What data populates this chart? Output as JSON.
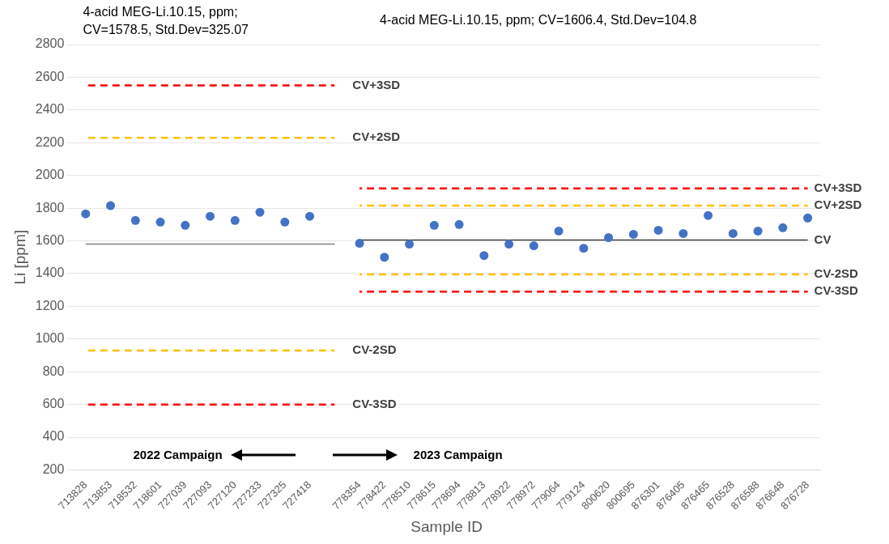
{
  "chart_data": {
    "type": "scatter",
    "categories": [
      "713828",
      "713853",
      "718532",
      "718601",
      "727039",
      "727093",
      "727120",
      "727233",
      "727325",
      "727418",
      null,
      "778354",
      "778422",
      "778510",
      "778615",
      "778694",
      "778813",
      "778922",
      "778972",
      "779064",
      "779124",
      "800620",
      "800695",
      "876301",
      "876405",
      "876465",
      "876528",
      "876588",
      "876648",
      "876728"
    ],
    "xlabel": "Sample ID",
    "ylabel": "Li [ppm]",
    "ylim": [
      200,
      2800
    ],
    "yticks": [
      200,
      400,
      600,
      800,
      1000,
      1200,
      1400,
      1600,
      1800,
      2000,
      2200,
      2400,
      2600,
      2800
    ],
    "grid": "y",
    "legend": false,
    "marker": "circle",
    "annotations": [
      "4-acid MEG-Li.10.15, ppm;\nCV=1578.5, Std.Dev=325.07",
      "4-acid MEG-Li.10.15, ppm; CV=1606.4, Std.Dev=104.8",
      "2022 Campaign",
      "2023 Campaign"
    ],
    "series": [
      {
        "color": "#4472c4",
        "values": [
          1765,
          1815,
          1725,
          1715,
          1695,
          1750,
          1725,
          1775,
          1715,
          1750,
          null,
          1585,
          1500,
          1580,
          1695,
          1700,
          1510,
          1580,
          1570,
          1660,
          1555,
          1620,
          1640,
          1665,
          1645,
          1755,
          1645,
          1660,
          1680,
          1740
        ]
      },
      {
        "type": "line",
        "name": "CV+3SD",
        "color": "#ff0000",
        "line_style": "dashed",
        "marker": "none",
        "values": [
          2550,
          2550,
          2550,
          2550,
          2550,
          2550,
          2550,
          2550,
          2550,
          2550,
          2550,
          null,
          null,
          null,
          null,
          null,
          null,
          null,
          null,
          null,
          null,
          null,
          null,
          null,
          null,
          null,
          null,
          null,
          null,
          null
        ]
      },
      {
        "type": "line",
        "name": "CV+2SD",
        "color": "#ffc000",
        "line_style": "dashed",
        "marker": "none",
        "values": [
          2230,
          2230,
          2230,
          2230,
          2230,
          2230,
          2230,
          2230,
          2230,
          2230,
          2230,
          null,
          null,
          null,
          null,
          null,
          null,
          null,
          null,
          null,
          null,
          null,
          null,
          null,
          null,
          null,
          null,
          null,
          null,
          null
        ]
      },
      {
        "type": "line",
        "color": "#808080",
        "line_style": "solid",
        "marker": "none",
        "values": [
          1580,
          1580,
          1580,
          1580,
          1580,
          1580,
          1580,
          1580,
          1580,
          1580,
          1580,
          null,
          null,
          null,
          null,
          null,
          null,
          null,
          null,
          null,
          null,
          null,
          null,
          null,
          null,
          null,
          null,
          null,
          null,
          null
        ]
      },
      {
        "type": "line",
        "name": "CV-2SD",
        "color": "#ffc000",
        "line_style": "dashed",
        "marker": "none",
        "values": [
          930,
          930,
          930,
          930,
          930,
          930,
          930,
          930,
          930,
          930,
          930,
          null,
          null,
          null,
          null,
          null,
          null,
          null,
          null,
          null,
          null,
          null,
          null,
          null,
          null,
          null,
          null,
          null,
          null,
          null
        ]
      },
      {
        "type": "line",
        "name": "CV-3SD",
        "color": "#ff0000",
        "line_style": "dashed",
        "marker": "none",
        "values": [
          600,
          600,
          600,
          600,
          600,
          600,
          600,
          600,
          600,
          600,
          600,
          null,
          null,
          null,
          null,
          null,
          null,
          null,
          null,
          null,
          null,
          null,
          null,
          null,
          null,
          null,
          null,
          null,
          null,
          null
        ]
      },
      {
        "type": "line",
        "name": "CV+3SD",
        "color": "#ff0000",
        "line_style": "dashed",
        "marker": "none",
        "values": [
          null,
          null,
          null,
          null,
          null,
          null,
          null,
          null,
          null,
          null,
          null,
          1920,
          1920,
          1920,
          1920,
          1920,
          1920,
          1920,
          1920,
          1920,
          1920,
          1920,
          1920,
          1920,
          1920,
          1920,
          1920,
          1920,
          1920,
          1920
        ]
      },
      {
        "type": "line",
        "name": "CV+2SD",
        "color": "#ffc000",
        "line_style": "dashed",
        "marker": "none",
        "values": [
          null,
          null,
          null,
          null,
          null,
          null,
          null,
          null,
          null,
          null,
          null,
          1815,
          1815,
          1815,
          1815,
          1815,
          1815,
          1815,
          1815,
          1815,
          1815,
          1815,
          1815,
          1815,
          1815,
          1815,
          1815,
          1815,
          1815,
          1815
        ]
      },
      {
        "type": "line",
        "name": "CV",
        "color": "#404040",
        "line_style": "solid",
        "marker": "none",
        "values": [
          null,
          null,
          null,
          null,
          null,
          null,
          null,
          null,
          null,
          null,
          null,
          1605,
          1605,
          1605,
          1605,
          1605,
          1605,
          1605,
          1605,
          1605,
          1605,
          1605,
          1605,
          1605,
          1605,
          1605,
          1605,
          1605,
          1605,
          1605
        ]
      },
      {
        "type": "line",
        "name": "CV-2SD",
        "color": "#ffc000",
        "line_style": "dashed",
        "marker": "none",
        "values": [
          null,
          null,
          null,
          null,
          null,
          null,
          null,
          null,
          null,
          null,
          null,
          1395,
          1395,
          1395,
          1395,
          1395,
          1395,
          1395,
          1395,
          1395,
          1395,
          1395,
          1395,
          1395,
          1395,
          1395,
          1395,
          1395,
          1395,
          1395
        ]
      },
      {
        "type": "line",
        "name": "CV-3SD",
        "color": "#ff0000",
        "line_style": "dashed",
        "marker": "none",
        "values": [
          null,
          null,
          null,
          null,
          null,
          null,
          null,
          null,
          null,
          null,
          null,
          1290,
          1290,
          1290,
          1290,
          1290,
          1290,
          1290,
          1290,
          1290,
          1290,
          1290,
          1290,
          1290,
          1290,
          1290,
          1290,
          1290,
          1290,
          1290
        ]
      }
    ]
  }
}
